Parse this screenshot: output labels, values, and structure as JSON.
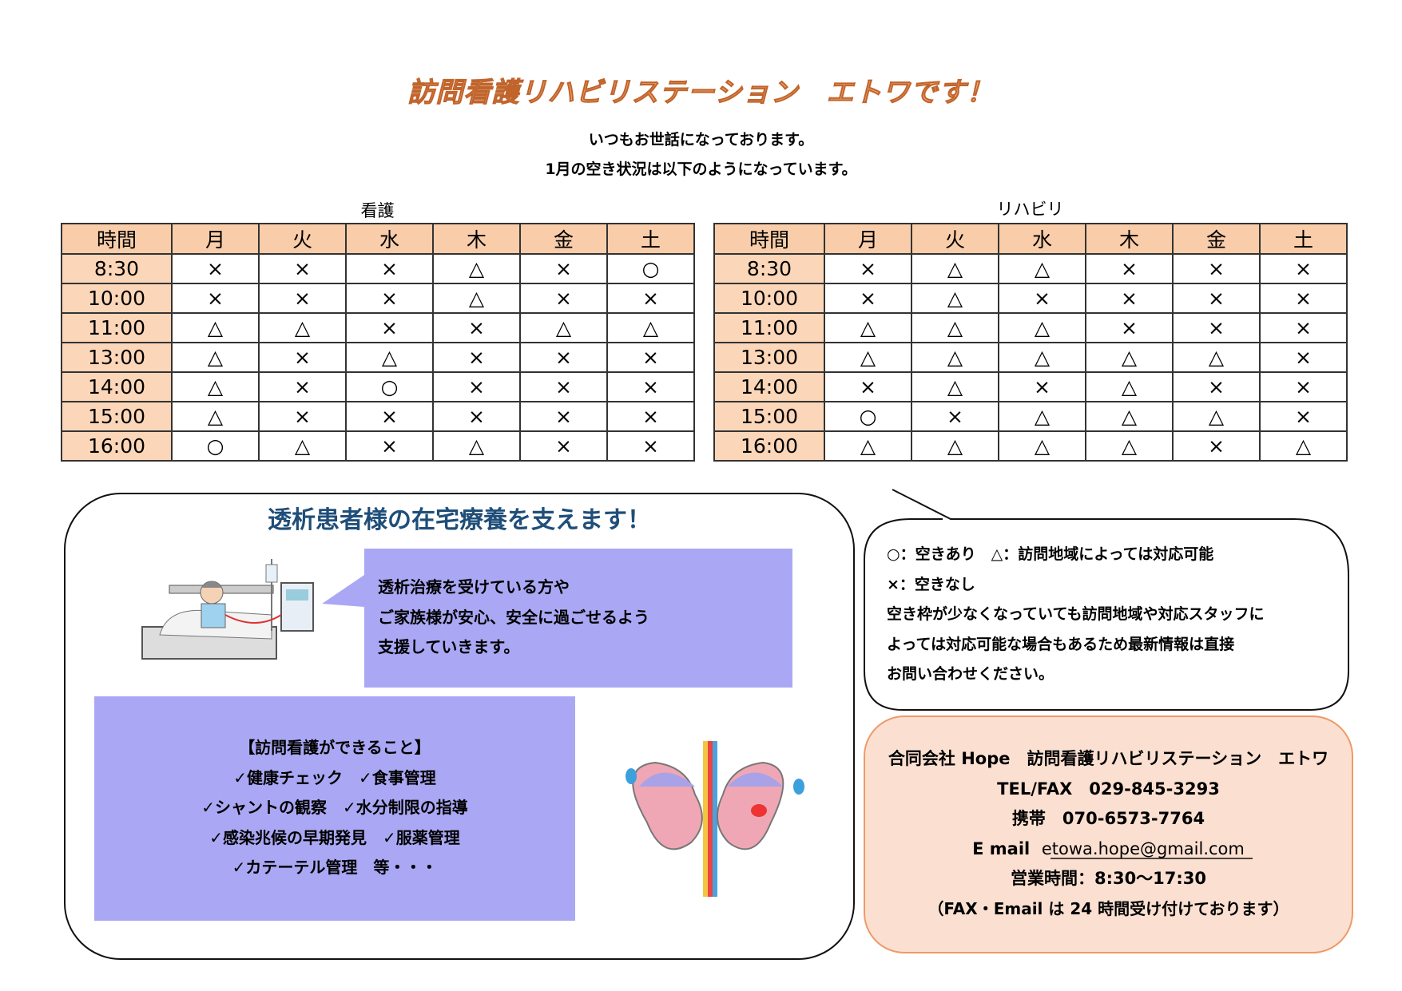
{
  "header": {
    "title": "訪問看護リハビリステーション　エトワです！",
    "lines": [
      "いつもお世話になっております。",
      "1月の空き状況は以下のようになっています。"
    ]
  },
  "tables": [
    {
      "label": "看護",
      "columns": [
        "時間",
        "月",
        "火",
        "水",
        "木",
        "金",
        "土"
      ],
      "rows": [
        [
          "8:30",
          "×",
          "×",
          "×",
          "△",
          "×",
          "○"
        ],
        [
          "10:00",
          "×",
          "×",
          "×",
          "△",
          "×",
          "×"
        ],
        [
          "11:00",
          "△",
          "△",
          "×",
          "×",
          "△",
          "△"
        ],
        [
          "13:00",
          "△",
          "×",
          "△",
          "×",
          "×",
          "×"
        ],
        [
          "14:00",
          "△",
          "×",
          "○",
          "×",
          "×",
          "×"
        ],
        [
          "15:00",
          "△",
          "×",
          "×",
          "×",
          "×",
          "×"
        ],
        [
          "16:00",
          "○",
          "△",
          "×",
          "△",
          "×",
          "×"
        ]
      ]
    },
    {
      "label": "リハビリ",
      "columns": [
        "時間",
        "月",
        "火",
        "水",
        "木",
        "金",
        "土"
      ],
      "rows": [
        [
          "8:30",
          "×",
          "△",
          "△",
          "×",
          "×",
          "×"
        ],
        [
          "10:00",
          "×",
          "△",
          "×",
          "×",
          "×",
          "×"
        ],
        [
          "11:00",
          "△",
          "△",
          "△",
          "×",
          "×",
          "×"
        ],
        [
          "13:00",
          "△",
          "△",
          "△",
          "△",
          "△",
          "×"
        ],
        [
          "14:00",
          "×",
          "△",
          "×",
          "△",
          "×",
          "×"
        ],
        [
          "15:00",
          "○",
          "×",
          "△",
          "△",
          "△",
          "×"
        ],
        [
          "16:00",
          "△",
          "△",
          "△",
          "△",
          "×",
          "△"
        ]
      ]
    }
  ],
  "dialysis": {
    "title": "透析患者様の在宅療養を支えます！",
    "speech": [
      "透析治療を受けている方や",
      "ご家族様が安心、安全に過ごせるよう",
      "支援していきます。"
    ],
    "list_title": "【訪問看護ができること】",
    "list": [
      "✓健康チェック　✓食事管理",
      "✓シャントの観察　✓水分制限の指導",
      "✓感染兆候の早期発見　✓服薬管理",
      "✓カテーテル管理　等・・・"
    ]
  },
  "legend": [
    "○：空きあり　△：訪問地域によっては対応可能",
    "×：空きなし",
    "空き枠が少なくなっていても訪問地域や対応スタッフに",
    "よっては対応可能な場合もあるため最新情報は直接",
    "お問い合わせください。"
  ],
  "contact": {
    "company": "合同会社 Hope　訪問看護リハビリステーション　エトワ",
    "tel": "TEL/FAX　029-845-3293",
    "mobile": "携帯　070-6573-7764",
    "email_label": "E mail",
    "email": "etowa.hope@gmail.com",
    "hours": "営業時間：8:30～17:30",
    "note": "（FAX・Email は 24 時間受け付けております）"
  }
}
